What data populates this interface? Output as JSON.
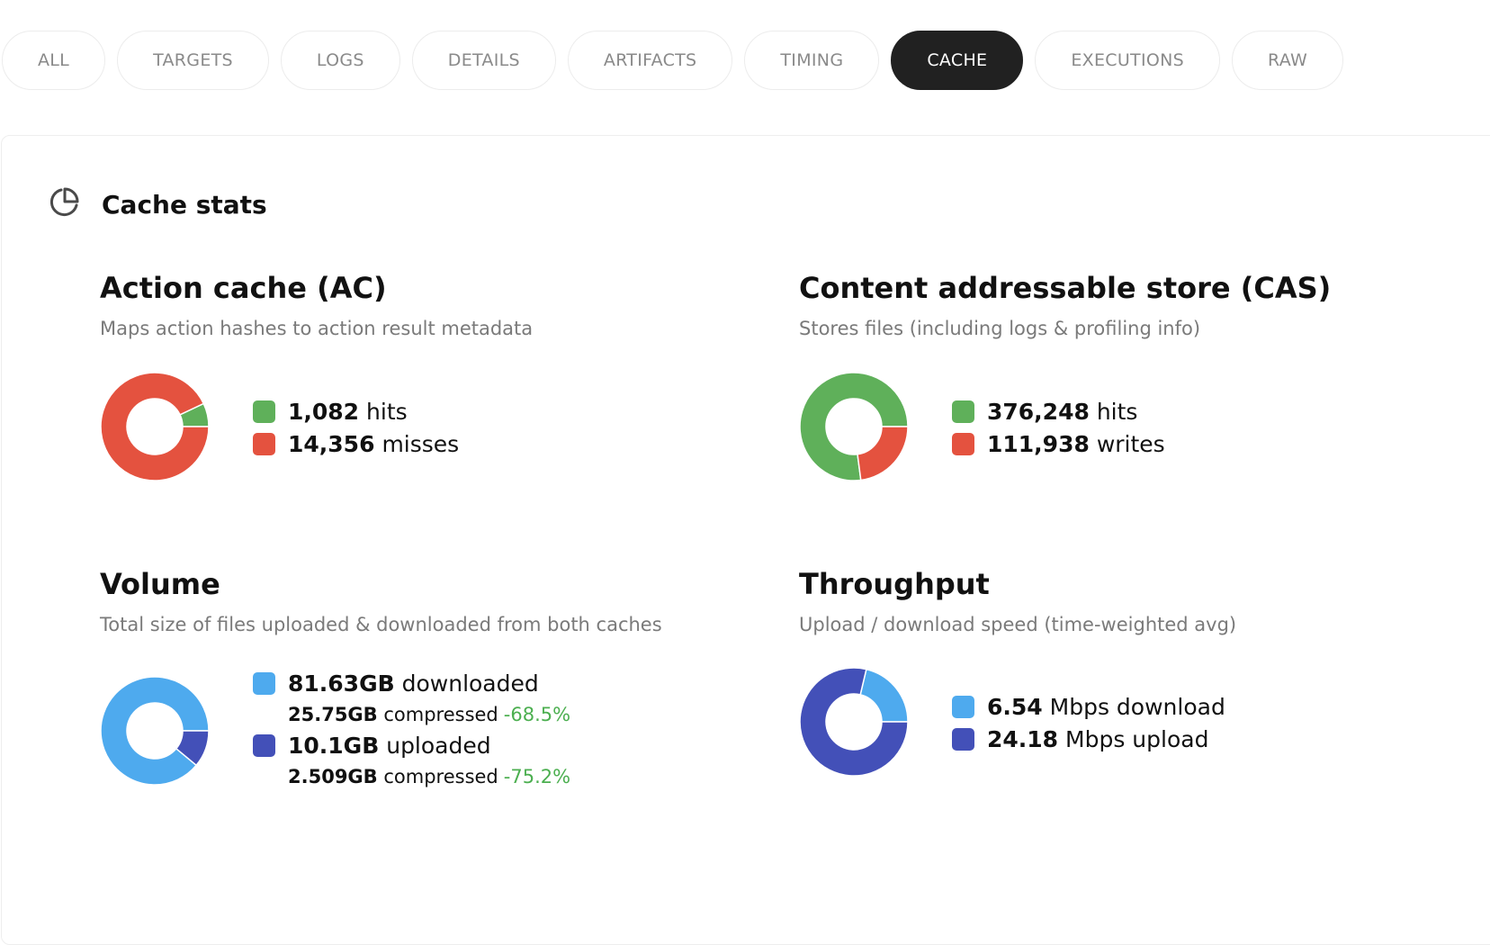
{
  "tabs": [
    {
      "label": "ALL",
      "active": false
    },
    {
      "label": "TARGETS",
      "active": false
    },
    {
      "label": "LOGS",
      "active": false
    },
    {
      "label": "DETAILS",
      "active": false
    },
    {
      "label": "ARTIFACTS",
      "active": false
    },
    {
      "label": "TIMING",
      "active": false
    },
    {
      "label": "CACHE",
      "active": true
    },
    {
      "label": "EXECUTIONS",
      "active": false
    },
    {
      "label": "RAW",
      "active": false
    }
  ],
  "card": {
    "title": "Cache stats",
    "icon": "pie-chart-icon"
  },
  "colors": {
    "green": "#5fb05a",
    "red": "#e4523f",
    "light_blue": "#4eaaee",
    "dark_blue": "#4350b8",
    "pct_green": "#4caf50"
  },
  "ac": {
    "title": "Action cache (AC)",
    "subtitle": "Maps action hashes to action result metadata",
    "hits_value": "1,082",
    "hits_label": "hits",
    "misses_value": "14,356",
    "misses_label": "misses"
  },
  "cas": {
    "title": "Content addressable store (CAS)",
    "subtitle": "Stores files (including logs & profiling info)",
    "hits_value": "376,248",
    "hits_label": "hits",
    "writes_value": "111,938",
    "writes_label": "writes"
  },
  "volume": {
    "title": "Volume",
    "subtitle": "Total size of files uploaded & downloaded from both caches",
    "downloaded_value": "81.63GB",
    "downloaded_label": "downloaded",
    "downloaded_compressed_value": "25.75GB",
    "downloaded_compressed_label": "compressed",
    "downloaded_compressed_pct": "-68.5%",
    "uploaded_value": "10.1GB",
    "uploaded_label": "uploaded",
    "uploaded_compressed_value": "2.509GB",
    "uploaded_compressed_label": "compressed",
    "uploaded_compressed_pct": "-75.2%"
  },
  "throughput": {
    "title": "Throughput",
    "subtitle": "Upload / download speed (time-weighted avg)",
    "download_value": "6.54",
    "download_label": "Mbps download",
    "upload_value": "24.18",
    "upload_label": "Mbps upload"
  },
  "chart_data": [
    {
      "type": "pie",
      "categories": [
        "hits",
        "misses"
      ],
      "values": [
        1082,
        14356
      ],
      "colors": [
        "#5fb05a",
        "#e4523f"
      ]
    },
    {
      "type": "pie",
      "categories": [
        "hits",
        "writes"
      ],
      "values": [
        376248,
        111938
      ],
      "colors": [
        "#5fb05a",
        "#e4523f"
      ]
    },
    {
      "type": "pie",
      "categories": [
        "downloaded",
        "uploaded"
      ],
      "values": [
        81.63,
        10.1
      ],
      "colors": [
        "#4eaaee",
        "#4350b8"
      ]
    },
    {
      "type": "pie",
      "categories": [
        "download",
        "upload"
      ],
      "values": [
        6.54,
        24.18
      ],
      "colors": [
        "#4eaaee",
        "#4350b8"
      ]
    }
  ]
}
